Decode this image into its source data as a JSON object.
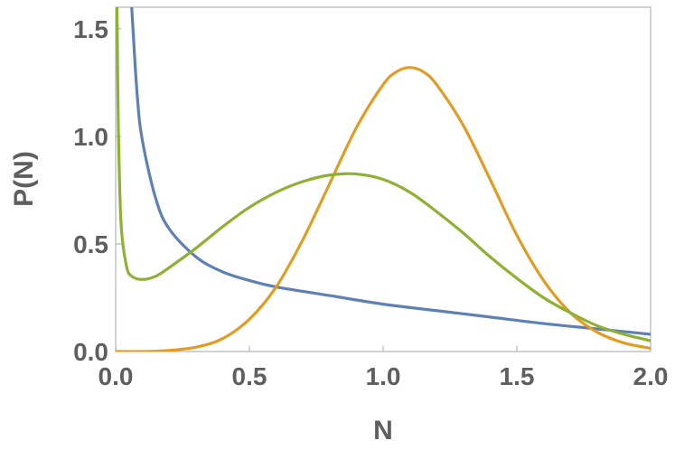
{
  "chart_data": {
    "type": "line",
    "xlabel": "N",
    "ylabel": "P(N)",
    "xlim": [
      0,
      2
    ],
    "ylim": [
      0,
      1.6
    ],
    "x_ticks": [
      0.0,
      0.5,
      1.0,
      1.5,
      2.0
    ],
    "x_tick_labels": [
      "0.0",
      "0.5",
      "1.0",
      "1.5",
      "2.0"
    ],
    "y_ticks": [
      0.0,
      0.5,
      1.0,
      1.5
    ],
    "y_tick_labels": [
      "0.0",
      "0.5",
      "1.0",
      "1.5"
    ],
    "grid": false,
    "series": [
      {
        "color": "#5E81B5",
        "x": [
          0.06,
          0.08,
          0.1,
          0.15,
          0.2,
          0.3,
          0.4,
          0.5,
          0.6,
          0.8,
          1.0,
          1.2,
          1.4,
          1.6,
          1.8,
          2.0
        ],
        "y": [
          1.6,
          1.2,
          0.98,
          0.71,
          0.57,
          0.44,
          0.37,
          0.33,
          0.3,
          0.26,
          0.22,
          0.19,
          0.16,
          0.13,
          0.105,
          0.08
        ]
      },
      {
        "color": "#E19C24",
        "x": [
          0.0,
          0.1,
          0.2,
          0.3,
          0.4,
          0.5,
          0.6,
          0.7,
          0.8,
          0.9,
          1.0,
          1.05,
          1.1,
          1.15,
          1.2,
          1.3,
          1.4,
          1.5,
          1.6,
          1.7,
          1.8,
          1.9,
          2.0
        ],
        "y": [
          0.0,
          0.0,
          0.005,
          0.02,
          0.06,
          0.15,
          0.3,
          0.52,
          0.78,
          1.04,
          1.24,
          1.3,
          1.32,
          1.3,
          1.24,
          1.05,
          0.8,
          0.54,
          0.33,
          0.18,
          0.09,
          0.04,
          0.015
        ]
      },
      {
        "color": "#8FB032",
        "x": [
          0.005,
          0.01,
          0.02,
          0.04,
          0.06,
          0.1,
          0.15,
          0.2,
          0.3,
          0.4,
          0.5,
          0.6,
          0.7,
          0.8,
          0.9,
          1.0,
          1.1,
          1.2,
          1.3,
          1.4,
          1.5,
          1.6,
          1.7,
          1.8,
          1.9,
          2.0
        ],
        "y": [
          1.6,
          1.05,
          0.6,
          0.4,
          0.35,
          0.335,
          0.35,
          0.39,
          0.48,
          0.58,
          0.67,
          0.74,
          0.79,
          0.82,
          0.825,
          0.8,
          0.74,
          0.65,
          0.55,
          0.44,
          0.34,
          0.25,
          0.18,
          0.12,
          0.08,
          0.05
        ]
      }
    ]
  }
}
